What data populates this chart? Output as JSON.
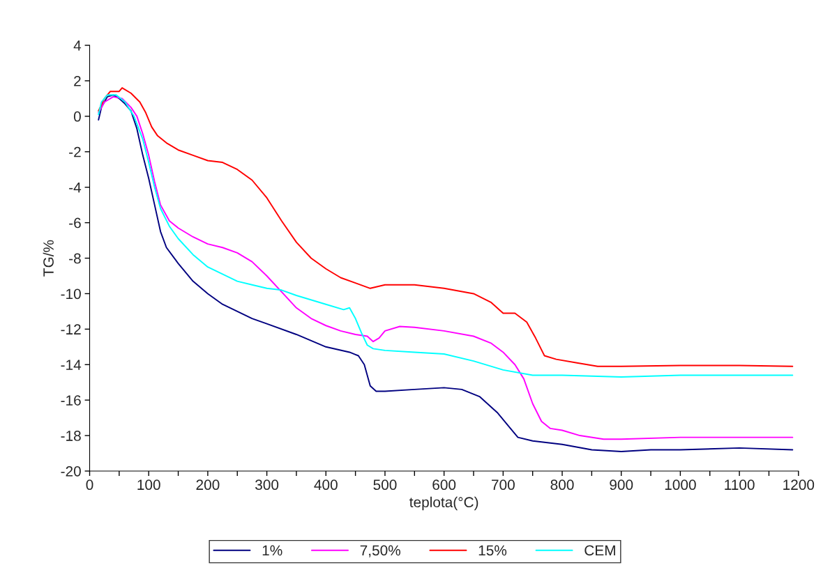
{
  "chart_data": {
    "type": "line",
    "xlabel": "teplota(°C)",
    "ylabel": "TG/%",
    "xlim": [
      0,
      1200
    ],
    "ylim": [
      -20,
      4
    ],
    "xticks": [
      0,
      {
        "value": 50,
        "label": null
      },
      100,
      {
        "value": 150,
        "label": null
      },
      200,
      {
        "value": 250,
        "label": null
      },
      300,
      {
        "value": 350,
        "label": null
      },
      400,
      {
        "value": 450,
        "label": null
      },
      500,
      {
        "value": 550,
        "label": null
      },
      600,
      {
        "value": 650,
        "label": null
      },
      700,
      {
        "value": 750,
        "label": null
      },
      800,
      {
        "value": 850,
        "label": null
      },
      900,
      {
        "value": 950,
        "label": null
      },
      1000,
      {
        "value": 1050,
        "label": null
      },
      1100,
      {
        "value": 1150,
        "label": null
      },
      1200
    ],
    "yticks": [
      -20,
      -18,
      -16,
      -14,
      -12,
      -10,
      -8,
      -6,
      -4,
      -2,
      0,
      2,
      4
    ],
    "grid": false,
    "legend": "bottom",
    "marker": "none",
    "line_style": "solid",
    "series": [
      {
        "name": "1%",
        "color": "#000080",
        "x": [
          15,
          20,
          30,
          40,
          50,
          60,
          70,
          80,
          90,
          100,
          110,
          120,
          130,
          150,
          175,
          200,
          225,
          250,
          275,
          300,
          350,
          400,
          440,
          455,
          465,
          475,
          485,
          500,
          550,
          600,
          630,
          660,
          690,
          710,
          725,
          750,
          800,
          850,
          900,
          950,
          1000,
          1100,
          1190
        ],
        "values": [
          -0.2,
          0.5,
          1.1,
          1.2,
          1.0,
          0.7,
          0.3,
          -0.7,
          -2.2,
          -3.5,
          -5.0,
          -6.5,
          -7.4,
          -8.3,
          -9.3,
          -10.0,
          -10.6,
          -11.0,
          -11.4,
          -11.7,
          -12.3,
          -13.0,
          -13.3,
          -13.5,
          -14.0,
          -15.2,
          -15.5,
          -15.5,
          -15.4,
          -15.3,
          -15.4,
          -15.8,
          -16.7,
          -17.5,
          -18.1,
          -18.3,
          -18.5,
          -18.8,
          -18.9,
          -18.8,
          -18.8,
          -18.7,
          -18.8
        ]
      },
      {
        "name": "7,50%",
        "color": "#ff00ff",
        "x": [
          15,
          25,
          40,
          55,
          70,
          80,
          90,
          100,
          110,
          120,
          135,
          150,
          175,
          200,
          225,
          250,
          275,
          300,
          325,
          350,
          375,
          400,
          425,
          450,
          470,
          480,
          490,
          500,
          525,
          550,
          600,
          650,
          680,
          700,
          720,
          735,
          750,
          765,
          780,
          800,
          830,
          870,
          900,
          1000,
          1100,
          1190
        ],
        "values": [
          0.2,
          0.8,
          1.1,
          1.0,
          0.5,
          0.0,
          -1.0,
          -2.2,
          -3.7,
          -5.0,
          -5.9,
          -6.3,
          -6.8,
          -7.2,
          -7.4,
          -7.7,
          -8.2,
          -9.0,
          -9.9,
          -10.8,
          -11.4,
          -11.8,
          -12.1,
          -12.3,
          -12.4,
          -12.7,
          -12.5,
          -12.1,
          -11.85,
          -11.9,
          -12.1,
          -12.4,
          -12.8,
          -13.3,
          -14.0,
          -14.8,
          -16.2,
          -17.2,
          -17.6,
          -17.7,
          -18.0,
          -18.2,
          -18.2,
          -18.1,
          -18.1,
          -18.1
        ]
      },
      {
        "name": "15%",
        "color": "#ff0000",
        "x": [
          15,
          25,
          35,
          50,
          55,
          70,
          85,
          95,
          105,
          115,
          130,
          150,
          175,
          200,
          225,
          250,
          275,
          300,
          325,
          350,
          375,
          400,
          425,
          450,
          475,
          500,
          550,
          600,
          650,
          680,
          700,
          720,
          740,
          755,
          770,
          790,
          825,
          860,
          900,
          1000,
          1100,
          1190
        ],
        "values": [
          0.3,
          1.0,
          1.4,
          1.4,
          1.6,
          1.3,
          0.8,
          0.2,
          -0.6,
          -1.1,
          -1.5,
          -1.9,
          -2.2,
          -2.5,
          -2.6,
          -3.0,
          -3.6,
          -4.6,
          -5.9,
          -7.1,
          -8.0,
          -8.6,
          -9.1,
          -9.4,
          -9.7,
          -9.5,
          -9.5,
          -9.7,
          -10.0,
          -10.5,
          -11.1,
          -11.1,
          -11.6,
          -12.5,
          -13.5,
          -13.7,
          -13.9,
          -14.1,
          -14.1,
          -14.05,
          -14.05,
          -14.1
        ]
      },
      {
        "name": "CEM",
        "color": "#00ffff",
        "x": [
          15,
          20,
          30,
          45,
          60,
          75,
          90,
          100,
          110,
          120,
          135,
          150,
          175,
          200,
          225,
          250,
          275,
          300,
          325,
          350,
          400,
          430,
          440,
          450,
          460,
          470,
          480,
          500,
          550,
          600,
          650,
          700,
          750,
          800,
          900,
          1000,
          1100,
          1190
        ],
        "values": [
          0.1,
          0.8,
          1.2,
          1.2,
          0.8,
          0.0,
          -1.3,
          -2.6,
          -4.0,
          -5.2,
          -6.2,
          -6.9,
          -7.8,
          -8.5,
          -8.9,
          -9.3,
          -9.5,
          -9.7,
          -9.8,
          -10.1,
          -10.6,
          -10.9,
          -10.8,
          -11.4,
          -12.2,
          -12.9,
          -13.1,
          -13.2,
          -13.3,
          -13.4,
          -13.8,
          -14.3,
          -14.6,
          -14.6,
          -14.7,
          -14.6,
          -14.6,
          -14.6
        ]
      }
    ]
  }
}
